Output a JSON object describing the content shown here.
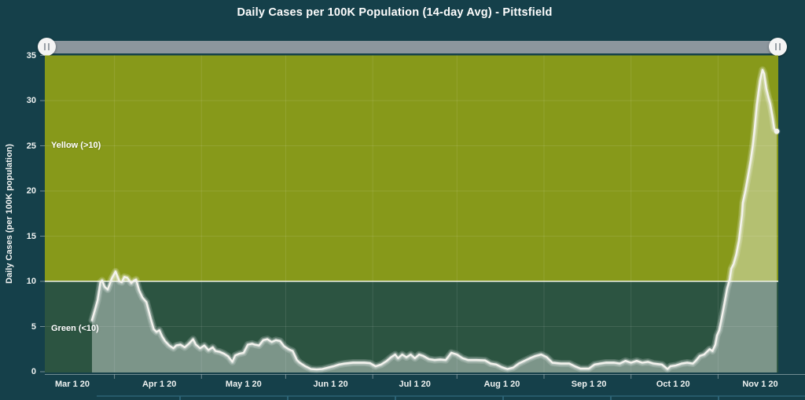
{
  "title": "Daily Cases per 100K Population (14-day Avg) - Pittsfield",
  "colors": {
    "background": "#15404A",
    "yellow_zone": "#87991A",
    "green_zone": "#2C5441",
    "area_fill": "rgba(255,255,255,0.38)",
    "line": "#F4F3EE",
    "line_glow": "rgba(255,255,255,0.30)",
    "threshold_line": "#E9EDE6",
    "grid_line": "rgba(255,255,255,0.10)",
    "axis_line": "rgba(255,255,255,0.40)",
    "slider_track": "#8C969D",
    "slider_handle": "#F4F4F4",
    "bottom_divider": "#2C6375",
    "text": "#FDFDFD"
  },
  "icons": {
    "slider_left_handle": "grip-vertical-icon",
    "slider_right_handle": "grip-vertical-icon"
  },
  "chart_data": {
    "type": "area",
    "title": "Daily Cases per 100K Population (14-day Avg) - Pittsfield",
    "xlabel": "",
    "ylabel": "Daily Cases (per 100K population)",
    "ylim": [
      0,
      35
    ],
    "y_ticks": [
      0,
      5,
      10,
      15,
      20,
      25,
      30,
      35
    ],
    "grid_y_values": [
      5,
      15,
      20,
      25,
      30
    ],
    "threshold": 10,
    "legend_position": "none",
    "zones": [
      {
        "label": "Yellow (>10)",
        "from": 10,
        "to": 35
      },
      {
        "label": "Green (<10)",
        "from": 0,
        "to": 10
      }
    ],
    "x_axis": {
      "unit": "days since Mar 1 2020",
      "tick_labels": [
        "Mar 1 20",
        "Apr 1 20",
        "May 1 20",
        "Jun 1 20",
        "Jul 1 20",
        "Aug 1 20",
        "Sep 1 20",
        "Oct 1 20",
        "Nov 1 20"
      ],
      "tick_days": [
        0,
        31,
        61,
        92,
        122,
        153,
        184,
        214,
        245
      ],
      "minor_tick_days": [
        15,
        46,
        76,
        107,
        137,
        168,
        199,
        230
      ]
    },
    "series": [
      {
        "name": "Daily cases per 100K (14-day avg)",
        "points": [
          [
            7,
            5.7
          ],
          [
            8,
            6.8
          ],
          [
            9,
            7.9
          ],
          [
            10,
            9.9
          ],
          [
            10.6,
            10.1
          ],
          [
            11.5,
            9.4
          ],
          [
            12.6,
            9.1
          ],
          [
            14,
            10.3
          ],
          [
            15.4,
            11.1
          ],
          [
            16.8,
            10.0
          ],
          [
            17.6,
            9.9
          ],
          [
            18.5,
            10.5
          ],
          [
            19.6,
            10.4
          ],
          [
            21,
            9.8
          ],
          [
            22,
            10.1
          ],
          [
            22.7,
            10.2
          ],
          [
            23.8,
            9.0
          ],
          [
            25,
            8.2
          ],
          [
            26.4,
            7.7
          ],
          [
            28,
            5.8
          ],
          [
            29,
            4.7
          ],
          [
            30,
            4.4
          ],
          [
            31,
            4.6
          ],
          [
            32,
            3.9
          ],
          [
            33,
            3.4
          ],
          [
            34.5,
            2.9
          ],
          [
            36,
            2.6
          ],
          [
            37,
            2.9
          ],
          [
            38.5,
            3.0
          ],
          [
            40,
            2.7
          ],
          [
            41.5,
            3.1
          ],
          [
            43,
            3.6
          ],
          [
            44,
            3.0
          ],
          [
            45.5,
            2.6
          ],
          [
            47,
            2.9
          ],
          [
            48.5,
            2.4
          ],
          [
            50,
            2.7
          ],
          [
            51,
            2.3
          ],
          [
            52.5,
            2.2
          ],
          [
            54,
            2.0
          ],
          [
            55.5,
            1.7
          ],
          [
            57,
            1.1
          ],
          [
            58,
            1.8
          ],
          [
            59.5,
            2.0
          ],
          [
            61,
            2.1
          ],
          [
            62.5,
            3.0
          ],
          [
            64,
            3.1
          ],
          [
            65,
            3.0
          ],
          [
            66.5,
            2.9
          ],
          [
            68,
            3.5
          ],
          [
            69.5,
            3.6
          ],
          [
            71,
            3.3
          ],
          [
            72.5,
            3.5
          ],
          [
            74,
            3.4
          ],
          [
            75.5,
            2.8
          ],
          [
            77,
            2.5
          ],
          [
            78.5,
            2.3
          ],
          [
            80,
            1.3
          ],
          [
            81,
            1.0
          ],
          [
            83,
            0.6
          ],
          [
            85,
            0.3
          ],
          [
            87,
            0.25
          ],
          [
            89,
            0.3
          ],
          [
            91,
            0.45
          ],
          [
            93,
            0.6
          ],
          [
            95,
            0.8
          ],
          [
            97,
            0.9
          ],
          [
            100,
            1.0
          ],
          [
            104,
            1.0
          ],
          [
            106,
            0.95
          ],
          [
            108,
            0.6
          ],
          [
            110,
            0.8
          ],
          [
            112,
            1.2
          ],
          [
            113.5,
            1.6
          ],
          [
            115,
            1.9
          ],
          [
            116,
            1.5
          ],
          [
            117.5,
            1.9
          ],
          [
            119,
            1.6
          ],
          [
            120.5,
            1.9
          ],
          [
            122,
            1.5
          ],
          [
            123.5,
            1.9
          ],
          [
            125,
            1.75
          ],
          [
            127,
            1.4
          ],
          [
            129,
            1.3
          ],
          [
            131,
            1.35
          ],
          [
            133,
            1.3
          ],
          [
            135,
            2.1
          ],
          [
            137,
            1.9
          ],
          [
            139,
            1.5
          ],
          [
            141,
            1.3
          ],
          [
            144,
            1.3
          ],
          [
            147,
            1.25
          ],
          [
            149,
            0.9
          ],
          [
            151,
            0.8
          ],
          [
            153,
            0.5
          ],
          [
            155,
            0.3
          ],
          [
            157,
            0.45
          ],
          [
            159,
            0.9
          ],
          [
            161,
            1.2
          ],
          [
            163,
            1.5
          ],
          [
            165,
            1.75
          ],
          [
            167,
            1.9
          ],
          [
            169,
            1.6
          ],
          [
            171,
            1.0
          ],
          [
            174,
            0.9
          ],
          [
            177,
            0.9
          ],
          [
            179,
            0.6
          ],
          [
            181,
            0.35
          ],
          [
            184,
            0.35
          ],
          [
            186,
            0.8
          ],
          [
            188,
            0.9
          ],
          [
            190,
            1.0
          ],
          [
            193,
            1.0
          ],
          [
            195,
            0.9
          ],
          [
            197,
            1.2
          ],
          [
            199,
            1.0
          ],
          [
            201,
            1.2
          ],
          [
            203,
            1.0
          ],
          [
            205,
            1.1
          ],
          [
            207,
            0.9
          ],
          [
            210,
            0.8
          ],
          [
            212,
            0.3
          ],
          [
            213,
            0.6
          ],
          [
            215,
            0.7
          ],
          [
            217,
            0.9
          ],
          [
            219,
            1.0
          ],
          [
            221,
            0.9
          ],
          [
            222,
            1.2
          ],
          [
            223.5,
            1.75
          ],
          [
            225,
            1.9
          ],
          [
            226,
            2.2
          ],
          [
            227,
            2.5
          ],
          [
            228,
            2.3
          ],
          [
            229,
            3.0
          ],
          [
            229.6,
            4.0
          ],
          [
            230.4,
            4.6
          ],
          [
            231,
            5.5
          ],
          [
            231.8,
            6.8
          ],
          [
            232.5,
            8.0
          ],
          [
            233.2,
            9.2
          ],
          [
            234.1,
            10.2
          ],
          [
            234.7,
            11.4
          ],
          [
            235.5,
            11.9
          ],
          [
            236.5,
            13.0
          ],
          [
            237.4,
            14.5
          ],
          [
            238.5,
            17.3
          ],
          [
            238.8,
            18.7
          ],
          [
            239.7,
            20.0
          ],
          [
            240.8,
            21.9
          ],
          [
            241.6,
            23.4
          ],
          [
            242.4,
            25.1
          ],
          [
            243,
            26.9
          ],
          [
            243.8,
            29.5
          ],
          [
            244.4,
            31.0
          ],
          [
            245,
            32.3
          ],
          [
            245.8,
            33.4
          ],
          [
            246.4,
            33.0
          ],
          [
            247.2,
            31.3
          ],
          [
            248,
            30.3
          ],
          [
            248.6,
            29.6
          ],
          [
            249.4,
            28.2
          ],
          [
            250,
            26.9
          ],
          [
            250.9,
            26.6
          ]
        ]
      }
    ]
  }
}
